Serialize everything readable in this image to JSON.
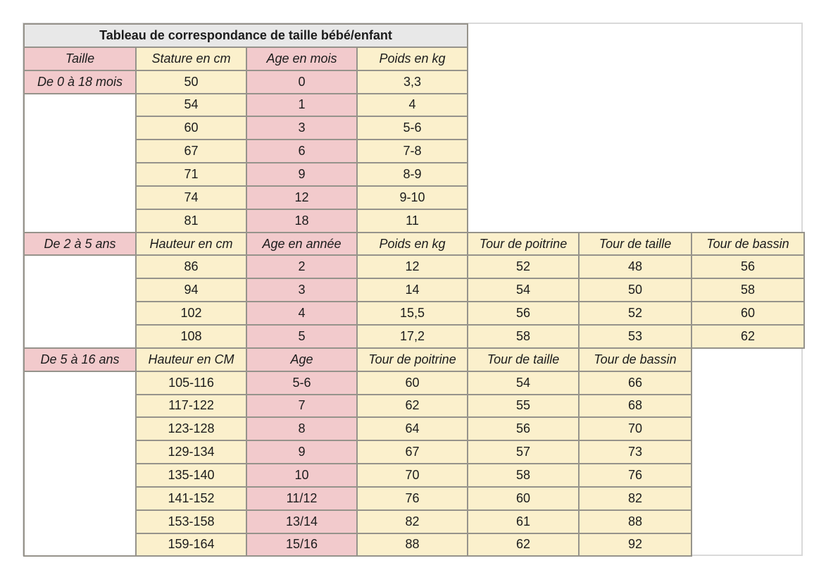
{
  "colors": {
    "cream": "#FBF0CC",
    "pink": "#F2CACC",
    "title_bg": "#E8E8E8",
    "grid_border": "#96938B",
    "sheet_outline": "#D9D9D9",
    "text": "#1C1C1C",
    "empty_cell": "#FFFFFF"
  },
  "table": {
    "title": "Tableau de correspondance de taille bébé/enfant",
    "sections": [
      {
        "first_col_header": "Taille",
        "range_label": "De 0 à 18 mois",
        "label_position": "first_data_row",
        "data_columns": [
          "Stature en cm",
          "Age en mois",
          "Poids en kg"
        ],
        "rows": [
          [
            "50",
            "0",
            "3,3"
          ],
          [
            "54",
            "1",
            "4"
          ],
          [
            "60",
            "3",
            "5-6"
          ],
          [
            "67",
            "6",
            "7-8"
          ],
          [
            "71",
            "9",
            "8-9"
          ],
          [
            "74",
            "12",
            "9-10"
          ],
          [
            "81",
            "18",
            "11"
          ]
        ]
      },
      {
        "range_label": "De 2 à 5 ans",
        "label_position": "header_row",
        "data_columns": [
          "Hauteur en cm",
          "Age en année",
          "Poids en kg",
          "Tour de poitrine",
          "Tour de taille",
          "Tour de bassin"
        ],
        "rows": [
          [
            "86",
            "2",
            "12",
            "52",
            "48",
            "56"
          ],
          [
            "94",
            "3",
            "14",
            "54",
            "50",
            "58"
          ],
          [
            "102",
            "4",
            "15,5",
            "56",
            "52",
            "60"
          ],
          [
            "108",
            "5",
            "17,2",
            "58",
            "53",
            "62"
          ]
        ]
      },
      {
        "range_label": "De 5 à 16 ans",
        "label_position": "header_row",
        "data_columns": [
          "Hauteur en CM",
          "Age",
          "Tour de poitrine",
          "Tour de taille",
          "Tour de bassin"
        ],
        "rows": [
          [
            "105-116",
            "5-6",
            "60",
            "54",
            "66"
          ],
          [
            "117-122",
            "7",
            "62",
            "55",
            "68"
          ],
          [
            "123-128",
            "8",
            "64",
            "56",
            "70"
          ],
          [
            "129-134",
            "9",
            "67",
            "57",
            "73"
          ],
          [
            "135-140",
            "10",
            "70",
            "58",
            "76"
          ],
          [
            "141-152",
            "11/12",
            "76",
            "60",
            "82"
          ],
          [
            "153-158",
            "13/14",
            "82",
            "61",
            "88"
          ],
          [
            "159-164",
            "15/16",
            "88",
            "62",
            "92"
          ]
        ]
      }
    ]
  }
}
